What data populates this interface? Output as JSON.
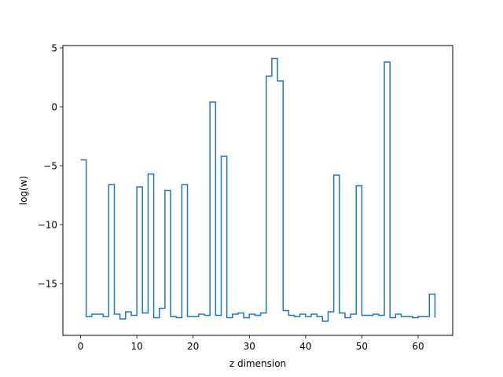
{
  "chart_data": {
    "type": "line",
    "drawstyle": "steps-post",
    "xlabel": "z dimension",
    "ylabel": "log(w)",
    "xlim": [
      -3.15,
      66.15
    ],
    "ylim": [
      -19.4,
      5.2
    ],
    "xticks": [
      0,
      10,
      20,
      30,
      40,
      50,
      60
    ],
    "xtick_labels": [
      "0",
      "10",
      "20",
      "30",
      "40",
      "50",
      "60"
    ],
    "yticks": [
      -15,
      -10,
      -5,
      0,
      5
    ],
    "ytick_labels": [
      "−15",
      "−10",
      "−5",
      "0",
      "5"
    ],
    "grid": false,
    "series": [
      {
        "color": "#1f77b4",
        "x": [
          0,
          1,
          2,
          3,
          4,
          5,
          6,
          7,
          8,
          9,
          10,
          11,
          12,
          13,
          14,
          15,
          16,
          17,
          18,
          19,
          20,
          21,
          22,
          23,
          24,
          25,
          26,
          27,
          28,
          29,
          30,
          31,
          32,
          33,
          34,
          35,
          36,
          37,
          38,
          39,
          40,
          41,
          42,
          43,
          44,
          45,
          46,
          47,
          48,
          49,
          50,
          51,
          52,
          53,
          54,
          55,
          56,
          57,
          58,
          59,
          60,
          61,
          62,
          63
        ],
        "values": [
          -4.5,
          -17.8,
          -17.6,
          -17.6,
          -17.8,
          -6.6,
          -17.6,
          -18.0,
          -17.4,
          -17.7,
          -6.8,
          -17.5,
          -5.7,
          -17.9,
          -17.1,
          -7.1,
          -17.8,
          -17.9,
          -6.6,
          -17.8,
          -17.8,
          -17.6,
          -17.7,
          0.4,
          -17.7,
          -4.2,
          -17.9,
          -17.6,
          -17.5,
          -17.9,
          -17.6,
          -17.7,
          -17.5,
          2.6,
          4.1,
          2.2,
          -17.3,
          -17.7,
          -17.8,
          -17.6,
          -17.8,
          -17.6,
          -17.8,
          -18.2,
          -17.4,
          -5.8,
          -17.5,
          -17.9,
          -17.6,
          -6.7,
          -17.7,
          -17.7,
          -17.6,
          -17.7,
          3.8,
          -17.9,
          -17.6,
          -17.8,
          -17.8,
          -17.9,
          -17.8,
          -17.8,
          -15.9,
          -17.9
        ]
      }
    ]
  }
}
